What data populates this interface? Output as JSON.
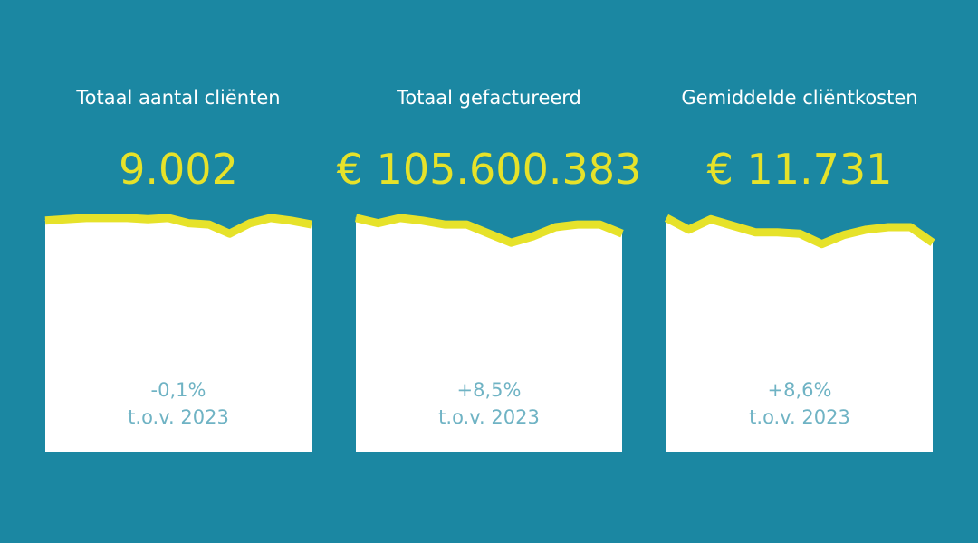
{
  "colors": {
    "background": "#1B87A2",
    "accent": "#E6E22A",
    "card": "#FFFFFF",
    "change_text": "#6FB3C4"
  },
  "chart_data": [
    {
      "type": "area",
      "title": "Totaal aantal cliënten",
      "value": "9.002",
      "change": "-0,1%",
      "comparison": "t.o.v. 2023",
      "values": [
        92,
        94,
        96,
        96,
        96,
        94,
        96,
        88,
        86,
        72,
        88,
        96,
        92,
        86
      ],
      "ylim": [
        0,
        100
      ]
    },
    {
      "type": "area",
      "title": "Totaal gefactureerd",
      "value": "€ 105.600.383",
      "change": "+8,5%",
      "comparison": "t.o.v. 2023",
      "values": [
        96,
        88,
        96,
        92,
        86,
        86,
        72,
        58,
        68,
        82,
        86,
        86,
        72
      ],
      "ylim": [
        0,
        100
      ]
    },
    {
      "type": "area",
      "title": "Gemiddelde cliëntkosten",
      "value": "€ 11.731",
      "change": "+8,6%",
      "comparison": "t.o.v. 2023",
      "values": [
        96,
        78,
        94,
        84,
        74,
        74,
        72,
        56,
        70,
        78,
        82,
        82,
        58
      ],
      "ylim": [
        0,
        100
      ]
    }
  ]
}
